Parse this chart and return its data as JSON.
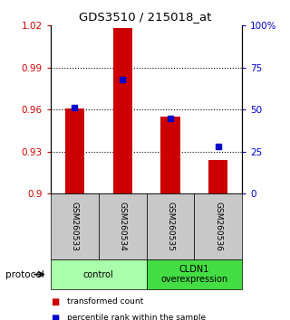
{
  "title": "GDS3510 / 215018_at",
  "samples": [
    "GSM260533",
    "GSM260534",
    "GSM260535",
    "GSM260536"
  ],
  "bar_values": [
    0.961,
    1.018,
    0.955,
    0.924
  ],
  "percentile_pct": [
    51,
    68,
    45,
    28
  ],
  "bar_color": "#cc0000",
  "dot_color": "#0000cc",
  "ylim_left": [
    0.9,
    1.02
  ],
  "yticks_left": [
    0.9,
    0.93,
    0.96,
    0.99,
    1.02
  ],
  "ytick_labels_left": [
    "0.9",
    "0.93",
    "0.96",
    "0.99",
    "1.02"
  ],
  "ylim_right": [
    0,
    100
  ],
  "yticks_right": [
    0,
    25,
    50,
    75,
    100
  ],
  "ytick_labels_right": [
    "0",
    "25",
    "50",
    "75",
    "100%"
  ],
  "grid_lines": [
    0.99,
    0.96,
    0.93
  ],
  "groups": [
    {
      "label": "control",
      "span": [
        0,
        2
      ],
      "color": "#aaffaa"
    },
    {
      "label": "CLDN1\noverexpression",
      "span": [
        2,
        4
      ],
      "color": "#44dd44"
    }
  ],
  "protocol_label": "protocol",
  "legend_items": [
    {
      "color": "#cc0000",
      "label": "transformed count"
    },
    {
      "color": "#0000cc",
      "label": "percentile rank within the sample"
    }
  ],
  "bar_bottom": 0.9,
  "background_color": "#ffffff",
  "xticklabel_box_color": "#c8c8c8",
  "bar_width": 0.4
}
